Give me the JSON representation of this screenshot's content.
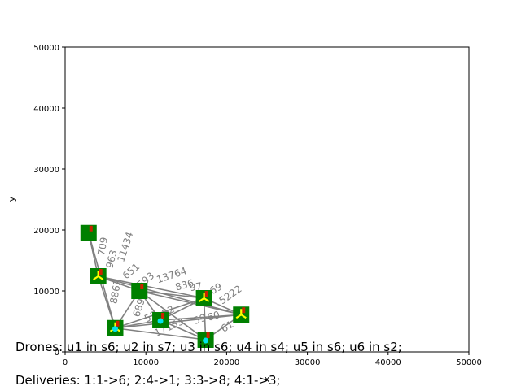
{
  "chart_data": {
    "type": "scatter",
    "xlabel": "x",
    "ylabel": "y",
    "xlim": [
      0,
      50000
    ],
    "ylim": [
      0,
      50000
    ],
    "xticks": [
      0,
      10000,
      20000,
      30000,
      40000,
      50000
    ],
    "yticks": [
      0,
      10000,
      20000,
      30000,
      40000,
      50000
    ],
    "grid": false,
    "colors": {
      "node": "#008000",
      "edge": "#808080",
      "edge_label": "#808080",
      "drone": "#ffff00",
      "depot_marker": "#00e5ee",
      "flag": "#cc2200"
    },
    "nodes": [
      {
        "id": "n1",
        "x": 2900,
        "y": 19500,
        "drone": false,
        "depot": false
      },
      {
        "id": "n2",
        "x": 4100,
        "y": 12400,
        "drone": true,
        "depot": false
      },
      {
        "id": "n3",
        "x": 6200,
        "y": 3900,
        "drone": true,
        "depot": true
      },
      {
        "id": "n4",
        "x": 9200,
        "y": 10000,
        "drone": false,
        "depot": false
      },
      {
        "id": "n5",
        "x": 11800,
        "y": 5200,
        "drone": false,
        "depot": true
      },
      {
        "id": "n6",
        "x": 17200,
        "y": 8800,
        "drone": true,
        "depot": false
      },
      {
        "id": "n7",
        "x": 17400,
        "y": 2000,
        "drone": false,
        "depot": true
      },
      {
        "id": "n8",
        "x": 21800,
        "y": 6100,
        "drone": true,
        "depot": false
      }
    ],
    "edges": [
      [
        "n1",
        "n2"
      ],
      [
        "n1",
        "n3"
      ],
      [
        "n2",
        "n3"
      ],
      [
        "n2",
        "n4"
      ],
      [
        "n2",
        "n6"
      ],
      [
        "n2",
        "n8"
      ],
      [
        "n3",
        "n4"
      ],
      [
        "n3",
        "n5"
      ],
      [
        "n3",
        "n6"
      ],
      [
        "n3",
        "n7"
      ],
      [
        "n3",
        "n8"
      ],
      [
        "n4",
        "n5"
      ],
      [
        "n4",
        "n6"
      ],
      [
        "n4",
        "n7"
      ],
      [
        "n4",
        "n8"
      ],
      [
        "n5",
        "n6"
      ],
      [
        "n5",
        "n7"
      ],
      [
        "n5",
        "n8"
      ],
      [
        "n6",
        "n7"
      ],
      [
        "n6",
        "n8"
      ],
      [
        "n7",
        "n8"
      ]
    ],
    "edge_labels": [
      {
        "text": "709",
        "x": 4700,
        "y": 17300,
        "angle": -80
      },
      {
        "text": "11434",
        "x": 7500,
        "y": 17200,
        "angle": -72
      },
      {
        "text": "963",
        "x": 5800,
        "y": 15200,
        "angle": -75
      },
      {
        "text": "8862",
        "x": 6300,
        "y": 9900,
        "angle": -80
      },
      {
        "text": "651",
        "x": 8200,
        "y": 13200,
        "angle": -40
      },
      {
        "text": "593",
        "x": 10000,
        "y": 11700,
        "angle": -40
      },
      {
        "text": "6896",
        "x": 9300,
        "y": 7700,
        "angle": -72
      },
      {
        "text": "13764",
        "x": 13200,
        "y": 12500,
        "angle": -18
      },
      {
        "text": "836",
        "x": 14800,
        "y": 10900,
        "angle": -15
      },
      {
        "text": "97",
        "x": 16200,
        "y": 10600,
        "angle": -10
      },
      {
        "text": "69",
        "x": 18700,
        "y": 10300,
        "angle": -30
      },
      {
        "text": "5222",
        "x": 20500,
        "y": 9300,
        "angle": -35
      },
      {
        "text": "53",
        "x": 10600,
        "y": 5700,
        "angle": -25
      },
      {
        "text": "52",
        "x": 12800,
        "y": 6600,
        "angle": -30
      },
      {
        "text": "17153",
        "x": 12900,
        "y": 4000,
        "angle": -25
      },
      {
        "text": "59",
        "x": 16700,
        "y": 5300,
        "angle": -20
      },
      {
        "text": "60",
        "x": 18400,
        "y": 5800,
        "angle": -15
      },
      {
        "text": "61",
        "x": 20100,
        "y": 4100,
        "angle": -30
      }
    ],
    "captions": {
      "drones": "Drones: u1 in s6; u2 in s7; u3 in s6; u4 in s4; u5 in s6; u6 in s2;",
      "deliveries": "Deliveries: 1:1->6; 2:4->1; 3:3->8; 4:1->3;"
    }
  }
}
